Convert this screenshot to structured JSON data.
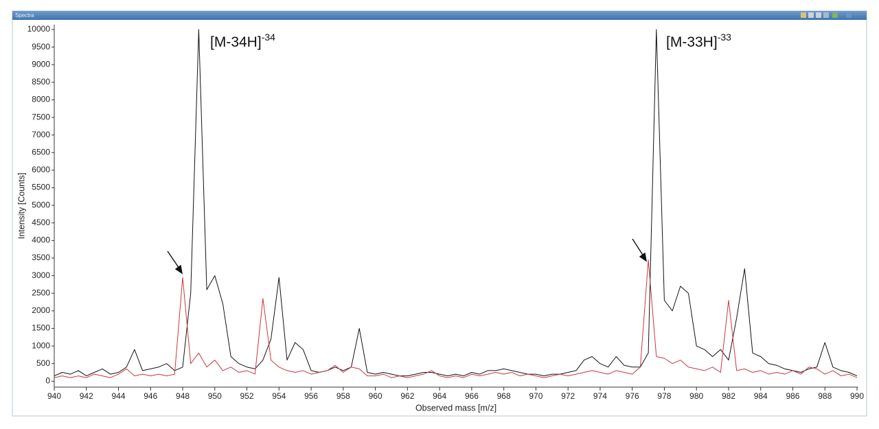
{
  "window_title": "Spectra",
  "chart_data": {
    "type": "line",
    "x_label": "Observed mass [m/z]",
    "y_label": "Intensity [Counts]",
    "annotations": [
      {
        "text": "[M-34H]",
        "sup": "-34"
      },
      {
        "text": "[M-33H]",
        "sup": "-33"
      }
    ],
    "xlim": [
      940,
      990
    ],
    "ylim": [
      -150,
      10000
    ],
    "xticks": [
      940,
      942,
      944,
      946,
      948,
      950,
      952,
      954,
      956,
      958,
      960,
      962,
      964,
      966,
      968,
      970,
      972,
      974,
      976,
      978,
      980,
      982,
      984,
      986,
      988,
      990
    ],
    "yticks": [
      0,
      500,
      1000,
      1500,
      2000,
      2500,
      3000,
      3500,
      4000,
      4500,
      5000,
      5500,
      6000,
      6500,
      7000,
      7500,
      8000,
      8500,
      9000,
      9500,
      10000
    ],
    "x": [
      940,
      940.5,
      941,
      941.5,
      942,
      942.5,
      943,
      943.5,
      944,
      944.5,
      945,
      945.5,
      946,
      946.5,
      947,
      947.5,
      948,
      948.5,
      949,
      949.5,
      950,
      950.5,
      951,
      951.5,
      952,
      952.5,
      953,
      953.5,
      954,
      954.5,
      955,
      955.5,
      956,
      956.5,
      957,
      957.5,
      958,
      958.5,
      959,
      959.5,
      960,
      960.5,
      961,
      961.5,
      962,
      962.5,
      963,
      963.5,
      964,
      964.5,
      965,
      965.5,
      966,
      966.5,
      967,
      967.5,
      968,
      968.5,
      969,
      969.5,
      970,
      970.5,
      971,
      971.5,
      972,
      972.5,
      973,
      973.5,
      974,
      974.5,
      975,
      975.5,
      976,
      976.5,
      977,
      977.5,
      978,
      978.5,
      979,
      979.5,
      980,
      980.5,
      981,
      981.5,
      982,
      982.5,
      983,
      983.5,
      984,
      984.5,
      985,
      985.5,
      986,
      986.5,
      987,
      987.5,
      988,
      988.5,
      989,
      989.5,
      990
    ],
    "series": [
      {
        "color": "#111111",
        "values": [
          150,
          250,
          200,
          300,
          150,
          250,
          350,
          200,
          250,
          400,
          900,
          300,
          350,
          400,
          500,
          300,
          400,
          2500,
          10000,
          2600,
          3000,
          2200,
          700,
          500,
          400,
          350,
          600,
          1200,
          2950,
          600,
          1100,
          900,
          300,
          250,
          300,
          400,
          300,
          400,
          1500,
          250,
          200,
          250,
          200,
          150,
          150,
          200,
          250,
          250,
          200,
          150,
          200,
          150,
          250,
          200,
          300,
          300,
          350,
          300,
          250,
          200,
          200,
          150,
          200,
          200,
          250,
          300,
          600,
          700,
          500,
          400,
          700,
          450,
          400,
          400,
          800,
          10000,
          2300,
          2000,
          2700,
          2500,
          1000,
          900,
          700,
          900,
          600,
          1800,
          3200,
          800,
          700,
          500,
          450,
          350,
          300,
          250,
          350,
          400,
          1100,
          400,
          300,
          250,
          150
        ]
      },
      {
        "color": "#c8373c",
        "values": [
          100,
          150,
          100,
          150,
          100,
          200,
          150,
          100,
          200,
          350,
          150,
          200,
          150,
          200,
          150,
          200,
          2950,
          500,
          800,
          400,
          600,
          300,
          400,
          250,
          300,
          200,
          2350,
          600,
          400,
          300,
          250,
          300,
          200,
          250,
          300,
          450,
          250,
          400,
          350,
          150,
          150,
          200,
          100,
          150,
          100,
          150,
          200,
          300,
          150,
          100,
          150,
          100,
          200,
          150,
          200,
          250,
          200,
          250,
          150,
          200,
          150,
          100,
          150,
          200,
          150,
          200,
          250,
          300,
          250,
          200,
          300,
          250,
          200,
          400,
          3450,
          700,
          650,
          500,
          600,
          400,
          350,
          300,
          400,
          250,
          2300,
          300,
          350,
          250,
          300,
          200,
          250,
          200,
          300,
          200,
          400,
          350,
          200,
          300,
          150,
          200,
          100
        ]
      }
    ]
  }
}
